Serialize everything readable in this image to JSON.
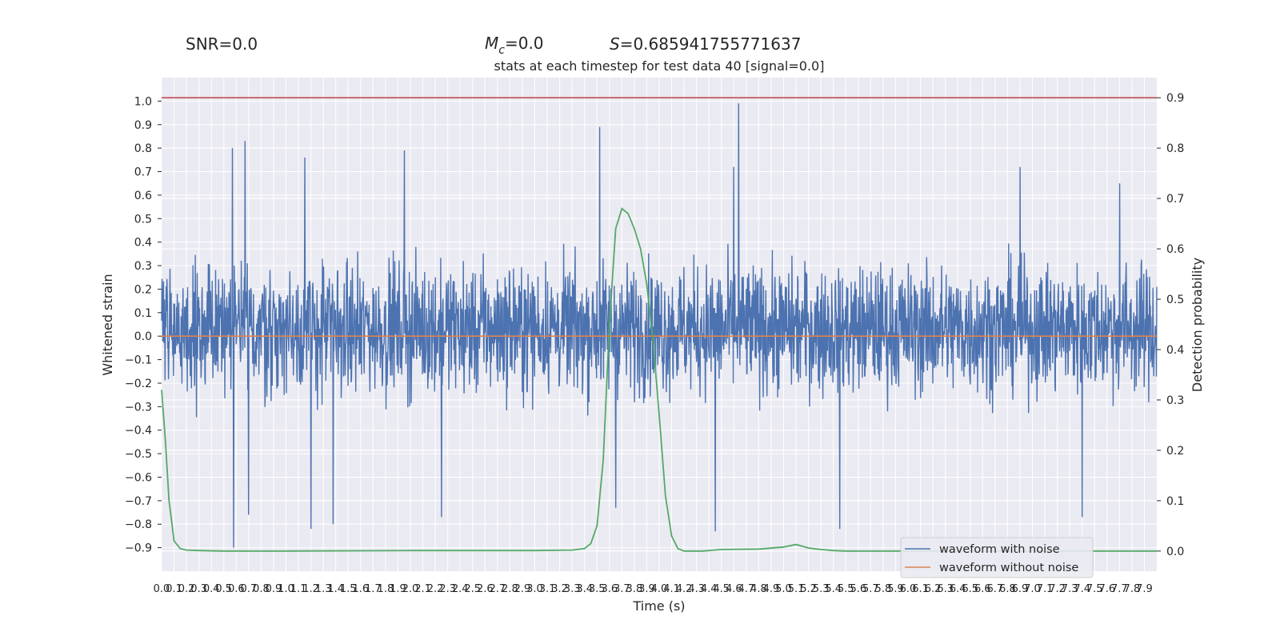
{
  "header": {
    "snr": "SNR=0.0",
    "mc": "=0.0",
    "mc_symbol": "M",
    "mc_subscript": "c",
    "s": "=0.685941755771637",
    "s_symbol": "S"
  },
  "chart_data": {
    "type": "line",
    "title": "stats at each timestep for test data 40 [signal=0.0]",
    "xlabel": "Time (s)",
    "ylabel_left": "Whitened strain",
    "ylabel_right": "Detection probability",
    "ylim_left": [
      -1.0,
      1.1
    ],
    "ylim_right": [
      -0.04,
      0.94
    ],
    "xlim": [
      0.0,
      8.0
    ],
    "grid": true,
    "legend_position": "lower-right",
    "colors": {
      "noise": "#4c72b0",
      "clean": "#dd8452",
      "prob": "#55a868",
      "threshold": "#c44e52",
      "background": "#eaeaf2",
      "grid": "#ffffff"
    },
    "left_ticks": [
      -0.9,
      -0.8,
      -0.7,
      -0.6,
      -0.5,
      -0.4,
      -0.3,
      -0.2,
      -0.1,
      0.0,
      0.1,
      0.2,
      0.3,
      0.4,
      0.5,
      0.6,
      0.7,
      0.8,
      0.9,
      1.0
    ],
    "left_tick_labels": [
      "−0.9",
      "−0.8",
      "−0.7",
      "−0.6",
      "−0.5",
      "−0.4",
      "−0.3",
      "−0.2",
      "−0.1",
      "0.0",
      "0.1",
      "0.2",
      "0.3",
      "0.4",
      "0.5",
      "0.6",
      "0.7",
      "0.8",
      "0.9",
      "1.0"
    ],
    "right_ticks": [
      0.0,
      0.1,
      0.2,
      0.3,
      0.4,
      0.5,
      0.6,
      0.7,
      0.8,
      0.9
    ],
    "right_tick_labels": [
      "0.0",
      "0.1",
      "0.2",
      "0.3",
      "0.4",
      "0.5",
      "0.6",
      "0.7",
      "0.8",
      "0.9"
    ],
    "x_ticks": [
      0.0,
      0.1,
      0.2,
      0.3,
      0.4,
      0.5,
      0.6,
      0.7,
      0.8,
      0.9,
      1.0,
      1.1,
      1.2,
      1.3,
      1.4,
      1.5,
      1.6,
      1.7,
      1.8,
      1.9,
      2.0,
      2.1,
      2.2,
      2.3,
      2.4,
      2.5,
      2.6,
      2.7,
      2.8,
      2.9,
      3.0,
      3.1,
      3.2,
      3.3,
      3.4,
      3.5,
      3.6,
      3.7,
      3.8,
      3.9,
      4.0,
      4.1,
      4.2,
      4.3,
      4.4,
      4.5,
      4.6,
      4.7,
      4.8,
      4.9,
      5.0,
      5.1,
      5.2,
      5.3,
      5.4,
      5.5,
      5.6,
      5.7,
      5.8,
      5.9,
      6.0,
      6.1,
      6.2,
      6.3,
      6.4,
      6.5,
      6.6,
      6.7,
      6.8,
      6.9,
      7.0,
      7.1,
      7.2,
      7.3,
      7.4,
      7.5,
      7.6,
      7.7,
      7.8,
      7.9
    ],
    "x_tick_labels": [
      "0.0",
      "0.1",
      "0.2",
      "0.3",
      "0.4",
      "0.5",
      "0.6",
      "0.7",
      "0.8",
      "0.9",
      "1.0",
      "1.1",
      "1.2",
      "1.3",
      "1.4",
      "1.5",
      "1.6",
      "1.7",
      "1.8",
      "1.9",
      "2.0",
      "2.1",
      "2.2",
      "2.3",
      "2.4",
      "2.5",
      "2.6",
      "2.7",
      "2.8",
      "2.9",
      "3.0",
      "3.1",
      "3.2",
      "3.3",
      "3.4",
      "3.5",
      "3.6",
      "3.7",
      "3.8",
      "3.9",
      "4.0",
      "4.1",
      "4.2",
      "4.3",
      "4.4",
      "4.5",
      "4.6",
      "4.7",
      "4.8",
      "4.9",
      "5.0",
      "5.1",
      "5.2",
      "5.3",
      "5.4",
      "5.5",
      "5.6",
      "5.7",
      "5.8",
      "5.9",
      "6.0",
      "6.1",
      "6.2",
      "6.3",
      "6.4",
      "6.5",
      "6.6",
      "6.7",
      "6.8",
      "6.9",
      "7.0",
      "7.1",
      "7.2",
      "7.3",
      "7.4",
      "7.5",
      "7.6",
      "7.7",
      "7.8",
      "7.9"
    ],
    "threshold_line": 0.9,
    "series": [
      {
        "name": "waveform with noise",
        "axis": "left",
        "note_visible": "dense noise, envelope approx ±0.3 with spikes",
        "spikes": [
          [
            0.57,
            0.8
          ],
          [
            0.58,
            -0.9
          ],
          [
            0.67,
            0.83
          ],
          [
            0.7,
            -0.76
          ],
          [
            1.15,
            0.76
          ],
          [
            1.2,
            -0.82
          ],
          [
            1.38,
            -0.8
          ],
          [
            1.95,
            0.79
          ],
          [
            2.25,
            -0.77
          ],
          [
            3.52,
            0.89
          ],
          [
            3.65,
            -0.73
          ],
          [
            4.6,
            0.72
          ],
          [
            4.64,
            0.99
          ],
          [
            4.45,
            -0.83
          ],
          [
            5.45,
            -0.82
          ],
          [
            6.9,
            0.72
          ],
          [
            7.4,
            -0.77
          ],
          [
            7.7,
            0.65
          ]
        ]
      },
      {
        "name": "waveform without noise",
        "axis": "left",
        "x": [
          0.0,
          8.0
        ],
        "y": [
          0.0,
          0.0
        ]
      },
      {
        "name": "",
        "axis": "right",
        "x": [
          0.0,
          0.03,
          0.06,
          0.1,
          0.15,
          0.2,
          0.3,
          0.5,
          1.0,
          2.0,
          3.0,
          3.3,
          3.4,
          3.45,
          3.5,
          3.55,
          3.6,
          3.65,
          3.7,
          3.75,
          3.8,
          3.85,
          3.9,
          3.95,
          4.0,
          4.05,
          4.1,
          4.15,
          4.2,
          4.25,
          4.3,
          4.35,
          4.4,
          4.5,
          4.8,
          5.0,
          5.1,
          5.2,
          5.3,
          5.4,
          5.5,
          5.6,
          6.0,
          7.0,
          8.0
        ],
        "y": [
          0.32,
          0.22,
          0.1,
          0.02,
          0.005,
          0.002,
          0.001,
          0.0,
          0.0,
          0.001,
          0.001,
          0.002,
          0.005,
          0.015,
          0.05,
          0.18,
          0.45,
          0.64,
          0.68,
          0.67,
          0.64,
          0.6,
          0.53,
          0.42,
          0.27,
          0.11,
          0.03,
          0.005,
          0.0,
          0.0,
          0.0,
          0.0,
          0.001,
          0.003,
          0.004,
          0.008,
          0.013,
          0.006,
          0.003,
          0.001,
          0.0,
          0.0,
          0.0,
          0.0,
          0.0
        ]
      }
    ]
  }
}
